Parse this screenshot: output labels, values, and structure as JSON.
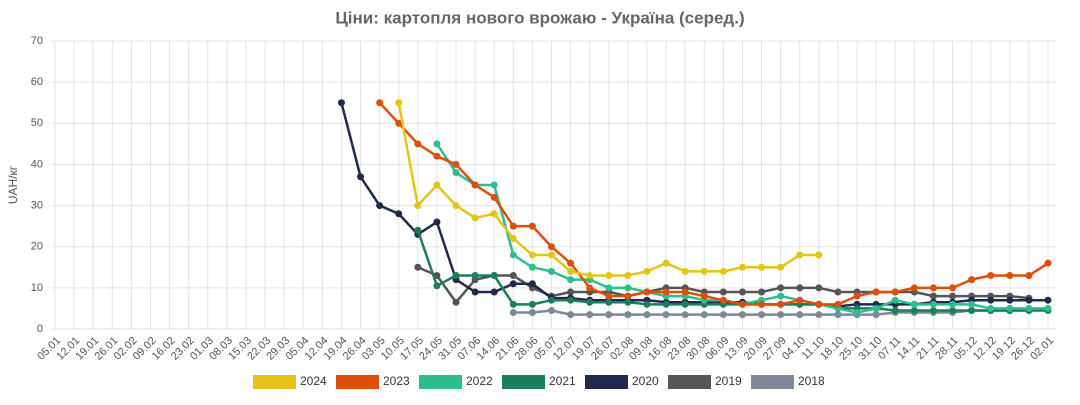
{
  "chart_data": {
    "type": "line",
    "title": "Ціни: картопля нового врожаю - Україна (серед.)",
    "y_label": "UAH/кг",
    "categories": [
      "05.01",
      "12.01",
      "19.01",
      "26.01",
      "02.02",
      "09.02",
      "16.02",
      "23.02",
      "01.03",
      "08.03",
      "15.03",
      "22.03",
      "29.03",
      "05.04",
      "12.04",
      "19.04",
      "26.04",
      "03.05",
      "10.05",
      "17.05",
      "24.05",
      "31.05",
      "07.06",
      "14.06",
      "21.06",
      "28.06",
      "05.07",
      "12.07",
      "19.07",
      "26.07",
      "02.08",
      "09.08",
      "16.08",
      "23.08",
      "30.08",
      "06.09",
      "13.09",
      "20.09",
      "27.09",
      "04.10",
      "11.10",
      "18.10",
      "25.10",
      "31.10",
      "07.11",
      "14.11",
      "21.11",
      "28.11",
      "05.12",
      "12.12",
      "19.12",
      "26.12",
      "02.01"
    ],
    "ylim": [
      0,
      70
    ],
    "yticks": [
      0,
      10,
      20,
      30,
      40,
      50,
      60,
      70
    ],
    "grid": true,
    "legend": "bottom",
    "series": [
      {
        "name": "2024",
        "color": "#e5c319",
        "values": [
          null,
          null,
          null,
          null,
          null,
          null,
          null,
          null,
          null,
          null,
          null,
          null,
          null,
          null,
          null,
          null,
          null,
          null,
          55,
          30,
          35,
          30,
          27,
          28,
          22,
          18,
          18,
          14,
          13,
          13,
          13,
          14,
          16,
          14,
          14,
          14,
          15,
          15,
          15,
          18,
          18,
          null,
          null,
          null,
          null,
          null,
          null,
          null,
          null,
          null,
          null,
          null,
          null
        ]
      },
      {
        "name": "2023",
        "color": "#e04e0a",
        "values": [
          null,
          null,
          null,
          null,
          null,
          null,
          null,
          null,
          null,
          null,
          null,
          null,
          null,
          null,
          null,
          null,
          null,
          55,
          50,
          45,
          42,
          40,
          35,
          32,
          25,
          25,
          20,
          16,
          10,
          8,
          8,
          9,
          9,
          9,
          8,
          7,
          6,
          6,
          6,
          7,
          6,
          6,
          8,
          9,
          9,
          10,
          10,
          10,
          12,
          13,
          13,
          13,
          16
        ]
      },
      {
        "name": "2022",
        "color": "#2dbe8c",
        "values": [
          null,
          null,
          null,
          null,
          null,
          null,
          null,
          null,
          null,
          null,
          null,
          null,
          null,
          null,
          null,
          null,
          null,
          null,
          null,
          null,
          45,
          38,
          35,
          35,
          18,
          15,
          14,
          12,
          12,
          10,
          10,
          9,
          8,
          8,
          7,
          7,
          6,
          7,
          8,
          7,
          6,
          5,
          4,
          5,
          7,
          6,
          6,
          6,
          6,
          5,
          5,
          5,
          5
        ]
      },
      {
        "name": "2021",
        "color": "#1a7f5a",
        "values": [
          null,
          null,
          null,
          null,
          null,
          null,
          null,
          null,
          null,
          null,
          null,
          null,
          null,
          null,
          null,
          null,
          null,
          null,
          null,
          24,
          10.5,
          13,
          13,
          13,
          6,
          6,
          7,
          7,
          6.5,
          6.5,
          6.5,
          6,
          6,
          6,
          6,
          6,
          6,
          6,
          6,
          6,
          6,
          5,
          5,
          5,
          4.5,
          4.5,
          4.5,
          4.5,
          4.5,
          4.5,
          4.5,
          4.5,
          4.5
        ]
      },
      {
        "name": "2020",
        "color": "#212a4c",
        "values": [
          null,
          null,
          null,
          null,
          null,
          null,
          null,
          null,
          null,
          null,
          null,
          null,
          null,
          null,
          null,
          55,
          37,
          30,
          28,
          23,
          26,
          12,
          9,
          9,
          11,
          11,
          7.5,
          7.5,
          7,
          7,
          7,
          7,
          6.5,
          6.5,
          6.5,
          6.5,
          6.5,
          6,
          6,
          6,
          6,
          5.5,
          6,
          6,
          6,
          6,
          6.5,
          6.5,
          7,
          7,
          7,
          7,
          7
        ]
      },
      {
        "name": "2019",
        "color": "#555555",
        "values": [
          null,
          null,
          null,
          null,
          null,
          null,
          null,
          null,
          null,
          null,
          null,
          null,
          null,
          null,
          null,
          null,
          null,
          null,
          null,
          15,
          13,
          6.5,
          12,
          13,
          13,
          10,
          8,
          9,
          9,
          9,
          8,
          9,
          10,
          10,
          9,
          9,
          9,
          9,
          10,
          10,
          10,
          9,
          9,
          9,
          9,
          9,
          8,
          8,
          8,
          8,
          8,
          7.5,
          null
        ]
      },
      {
        "name": "2018",
        "color": "#7f8899",
        "values": [
          null,
          null,
          null,
          null,
          null,
          null,
          null,
          null,
          null,
          null,
          null,
          null,
          null,
          null,
          null,
          null,
          null,
          null,
          null,
          null,
          null,
          null,
          null,
          null,
          4,
          4,
          4.5,
          3.5,
          3.5,
          3.5,
          3.5,
          3.5,
          3.5,
          3.5,
          3.5,
          3.5,
          3.5,
          3.5,
          3.5,
          3.5,
          3.5,
          3.5,
          3.5,
          3.5,
          4,
          4,
          4,
          4,
          4.5,
          4.5,
          4.5,
          4.5,
          null
        ]
      }
    ]
  }
}
